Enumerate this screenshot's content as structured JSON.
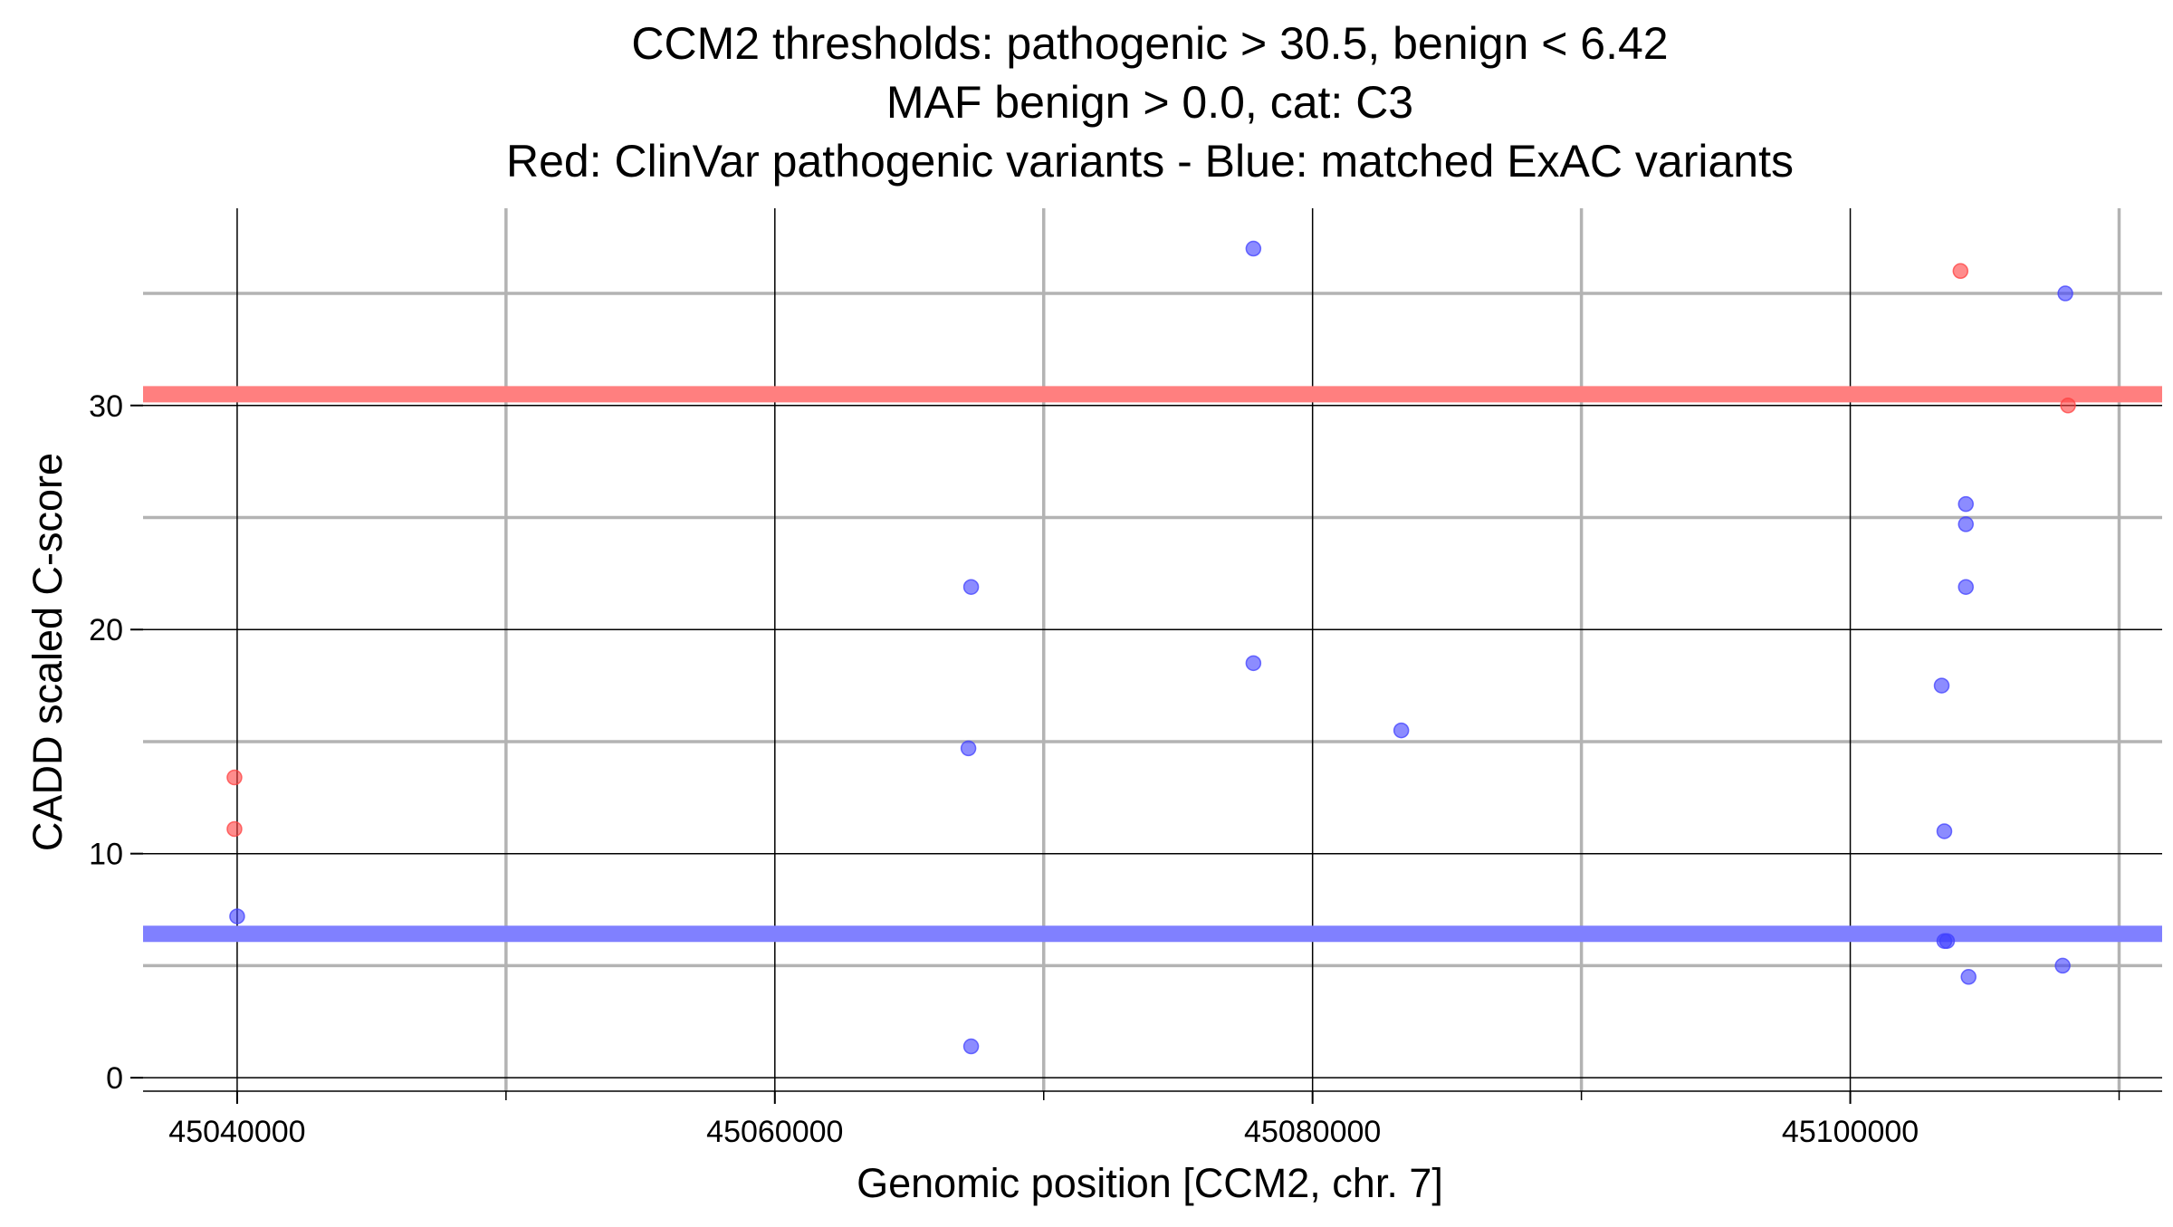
{
  "chart_data": {
    "type": "scatter",
    "title_lines": [
      "CCM2 thresholds: pathogenic > 30.5, benign < 6.42",
      "MAF benign > 0.0, cat: C3",
      "Red: ClinVar pathogenic variants - Blue: matched ExAC variants"
    ],
    "xlabel": "Genomic position [CCM2, chr. 7]",
    "ylabel": "CADD scaled C-score",
    "xlim": [
      45036500,
      45111600
    ],
    "ylim": [
      -0.6,
      38.8
    ],
    "x_major_ticks": [
      45040000,
      45060000,
      45080000,
      45100000
    ],
    "x_tick_labels": [
      "45040000",
      "45060000",
      "45080000",
      "45100000"
    ],
    "x_minor_gridlines": [
      45050000,
      45070000,
      45090000,
      45110000
    ],
    "y_major_ticks": [
      0,
      10,
      20,
      30
    ],
    "y_tick_labels": [
      "0",
      "10",
      "20",
      "30"
    ],
    "y_minor_gridlines": [
      5,
      15,
      25,
      35
    ],
    "grid": true,
    "thresholds": [
      {
        "label": "pathogenic",
        "y": 30.5,
        "color": "#ff7f7f"
      },
      {
        "label": "benign",
        "y": 6.42,
        "color": "#8080ff"
      }
    ],
    "series": [
      {
        "color": "#ff4040",
        "points": [
          {
            "x": 45039900,
            "y": 13.4
          },
          {
            "x": 45039900,
            "y": 11.1
          },
          {
            "x": 45104100,
            "y": 36.0
          },
          {
            "x": 45108100,
            "y": 30.0
          }
        ]
      },
      {
        "color": "#4040ff",
        "points": [
          {
            "x": 45040000,
            "y": 7.2
          },
          {
            "x": 45067300,
            "y": 21.9
          },
          {
            "x": 45067200,
            "y": 14.7
          },
          {
            "x": 45067300,
            "y": 1.4
          },
          {
            "x": 45077800,
            "y": 37.0
          },
          {
            "x": 45077800,
            "y": 18.5
          },
          {
            "x": 45083300,
            "y": 15.5
          },
          {
            "x": 45103400,
            "y": 17.5
          },
          {
            "x": 45103500,
            "y": 11.0
          },
          {
            "x": 45103600,
            "y": 6.1
          },
          {
            "x": 45103500,
            "y": 6.1
          },
          {
            "x": 45104300,
            "y": 25.6
          },
          {
            "x": 45104300,
            "y": 24.7
          },
          {
            "x": 45104300,
            "y": 21.9
          },
          {
            "x": 45104400,
            "y": 4.5
          },
          {
            "x": 45108000,
            "y": 35.0
          },
          {
            "x": 45107900,
            "y": 5.0
          }
        ]
      }
    ]
  }
}
